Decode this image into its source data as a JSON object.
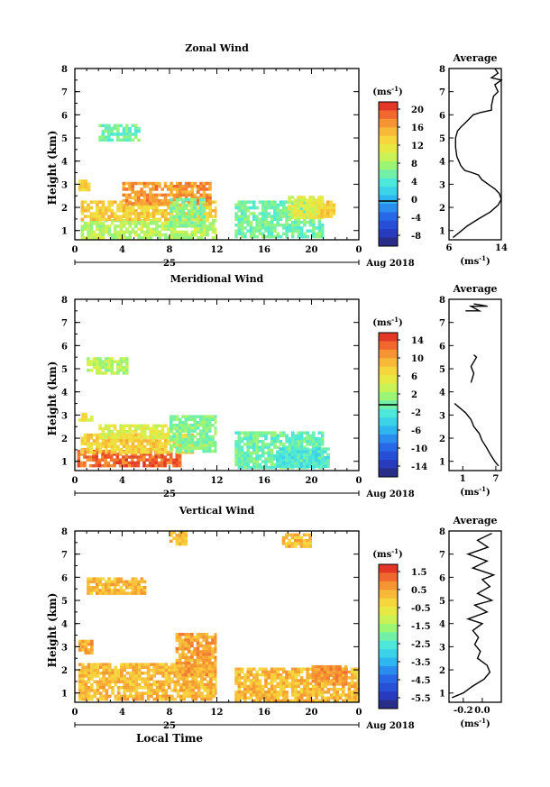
{
  "figure": {
    "xlabel": "Local Time",
    "date_day": "25",
    "date_month": "Aug 2018",
    "height_label": "Height (km)",
    "unit": "(ms",
    "unit_exp": "-1",
    "unit_close": ")"
  },
  "chart_data": [
    {
      "type": "heatmap",
      "title": "Zonal Wind",
      "xlabel": "",
      "ylabel": "Height (km)",
      "x_ticks": [
        "0",
        "4",
        "8",
        "12",
        "16",
        "20",
        "0"
      ],
      "y_ticks": [
        "1",
        "2",
        "3",
        "4",
        "5",
        "6",
        "7",
        "8"
      ],
      "xlim": [
        0,
        24
      ],
      "ylim": [
        0.6,
        8
      ],
      "colorbar": {
        "ticks": [
          "20",
          "16",
          "12",
          "8",
          "4",
          "0",
          "-4",
          "-8"
        ],
        "range": [
          -10,
          22
        ],
        "marker": 0
      },
      "data_gap_hours": [
        12,
        13.5
      ],
      "blobs": [
        {
          "x": [
            0.5,
            12
          ],
          "y": [
            0.7,
            1.5
          ],
          "value": 9
        },
        {
          "x": [
            0.5,
            12
          ],
          "y": [
            1.5,
            2.3
          ],
          "value": 14
        },
        {
          "x": [
            4,
            11.5
          ],
          "y": [
            2.2,
            3.1
          ],
          "value": 17
        },
        {
          "x": [
            8,
            11
          ],
          "y": [
            1.2,
            2.4
          ],
          "value": 7
        },
        {
          "x": [
            13.5,
            21
          ],
          "y": [
            0.7,
            2.3
          ],
          "value": 6
        },
        {
          "x": [
            18,
            21
          ],
          "y": [
            1.6,
            2.5
          ],
          "value": 11
        },
        {
          "x": [
            20.5,
            22
          ],
          "y": [
            1.6,
            2.3
          ],
          "value": 14
        },
        {
          "x": [
            2,
            5.5
          ],
          "y": [
            4.9,
            5.6
          ],
          "value": 6
        },
        {
          "x": [
            0.3,
            1.2
          ],
          "y": [
            2.8,
            3.2
          ],
          "value": 13
        }
      ],
      "profile": {
        "title": "Average",
        "xlabel": "(ms",
        "xlabel_exp": "-1",
        "xlabel_close": ")",
        "x_ticks": [
          "6",
          "14"
        ],
        "xlim": [
          6,
          14
        ],
        "points": [
          [
            6.6,
            0.7
          ],
          [
            7.5,
            0.9
          ],
          [
            8.8,
            1.2
          ],
          [
            10.5,
            1.5
          ],
          [
            12.3,
            1.8
          ],
          [
            13.5,
            2.1
          ],
          [
            14.0,
            2.35
          ],
          [
            13.7,
            2.6
          ],
          [
            13.0,
            2.8
          ],
          [
            12.0,
            3.0
          ],
          [
            11.0,
            3.2
          ],
          [
            10.5,
            3.4
          ],
          [
            9.5,
            3.5
          ],
          [
            8.4,
            3.6
          ],
          [
            7.8,
            3.8
          ],
          [
            7.2,
            4.2
          ],
          [
            7.0,
            4.6
          ],
          [
            7.0,
            5.0
          ],
          [
            7.3,
            5.3
          ],
          [
            7.6,
            5.4
          ],
          [
            7.9,
            5.5
          ],
          [
            8.3,
            5.6
          ],
          [
            9.0,
            5.8
          ],
          [
            9.7,
            6.0
          ],
          [
            10.8,
            6.1
          ],
          [
            12.5,
            6.2
          ],
          [
            12.5,
            6.4
          ],
          [
            12.8,
            6.8
          ],
          [
            13.5,
            7.0
          ],
          [
            13.0,
            7.3
          ],
          [
            14.0,
            7.5
          ],
          [
            12.5,
            7.6
          ],
          [
            13.5,
            7.8
          ],
          [
            13.0,
            8.0
          ]
        ]
      }
    },
    {
      "type": "heatmap",
      "title": "Meridional Wind",
      "xlabel": "",
      "ylabel": "Height (km)",
      "x_ticks": [
        "0",
        "4",
        "8",
        "12",
        "16",
        "20",
        "0"
      ],
      "y_ticks": [
        "1",
        "2",
        "3",
        "4",
        "5",
        "6",
        "7",
        "8"
      ],
      "xlim": [
        0,
        24
      ],
      "ylim": [
        0.6,
        8
      ],
      "colorbar": {
        "ticks": [
          "14",
          "10",
          "6",
          "2",
          "-2",
          "-6",
          "-10",
          "-14"
        ],
        "range": [
          -16,
          16
        ],
        "marker": 0
      },
      "data_gap_hours": [
        12,
        13.5
      ],
      "blobs": [
        {
          "x": [
            0.2,
            9
          ],
          "y": [
            0.8,
            1.5
          ],
          "value": 13
        },
        {
          "x": [
            0.5,
            10
          ],
          "y": [
            1.4,
            2.2
          ],
          "value": 8
        },
        {
          "x": [
            2,
            9
          ],
          "y": [
            2.0,
            2.6
          ],
          "value": 5
        },
        {
          "x": [
            8,
            12
          ],
          "y": [
            1.5,
            3.0
          ],
          "value": 1
        },
        {
          "x": [
            13.5,
            21
          ],
          "y": [
            0.8,
            2.3
          ],
          "value": 0
        },
        {
          "x": [
            17,
            21.5
          ],
          "y": [
            0.8,
            1.6
          ],
          "value": -2
        },
        {
          "x": [
            1,
            4.5
          ],
          "y": [
            4.8,
            5.5
          ],
          "value": 3
        },
        {
          "x": [
            0.3,
            1.5
          ],
          "y": [
            2.8,
            3.1
          ],
          "value": 6
        }
      ],
      "profile": {
        "title": "Average",
        "xlabel": "(ms",
        "xlabel_exp": "-1",
        "xlabel_close": ")",
        "x_ticks": [
          "1",
          "7"
        ],
        "xlim": [
          -1.5,
          8
        ],
        "points": [
          [
            7.5,
            0.8
          ],
          [
            6.8,
            1.0
          ],
          [
            6.0,
            1.3
          ],
          [
            5.3,
            1.6
          ],
          [
            4.5,
            1.9
          ],
          [
            4.0,
            2.2
          ],
          [
            3.0,
            2.5
          ],
          [
            2.5,
            2.8
          ],
          [
            1.5,
            3.1
          ],
          [
            0.5,
            3.3
          ],
          [
            -0.5,
            3.5
          ]
        ],
        "points2": [
          [
            2.5,
            4.4
          ],
          [
            3.0,
            4.8
          ],
          [
            2.5,
            5.1
          ],
          [
            3.5,
            5.5
          ],
          [
            3.0,
            5.6
          ]
        ],
        "points3": [
          [
            1.5,
            7.5
          ],
          [
            4.0,
            7.5
          ],
          [
            2.5,
            7.7
          ],
          [
            5.5,
            7.7
          ],
          [
            3.0,
            7.8
          ]
        ]
      }
    },
    {
      "type": "heatmap",
      "title": "Vertical Wind",
      "xlabel": "Local Time",
      "ylabel": "Height (km)",
      "x_ticks": [
        "0",
        "4",
        "8",
        "12",
        "16",
        "20",
        "0"
      ],
      "y_ticks": [
        "1",
        "2",
        "3",
        "4",
        "5",
        "6",
        "7",
        "8"
      ],
      "xlim": [
        0,
        24
      ],
      "ylim": [
        0.6,
        8
      ],
      "colorbar": {
        "ticks": [
          "1.5",
          "0.5",
          "-0.5",
          "-1.5",
          "-2.5",
          "-3.5",
          "-4.5",
          "-5.5"
        ],
        "range": [
          -6,
          2
        ],
        "marker": null
      },
      "data_gap_hours": [
        12,
        13.5
      ],
      "blobs": [
        {
          "x": [
            0.3,
            12
          ],
          "y": [
            0.7,
            2.3
          ],
          "value": 0.3
        },
        {
          "x": [
            13.5,
            24
          ],
          "y": [
            0.7,
            2.1
          ],
          "value": 0.3
        },
        {
          "x": [
            8.5,
            12
          ],
          "y": [
            1.8,
            3.6
          ],
          "value": 0.6
        },
        {
          "x": [
            0.3,
            1.5
          ],
          "y": [
            2.7,
            3.3
          ],
          "value": 0.6
        },
        {
          "x": [
            20,
            23
          ],
          "y": [
            1.4,
            2.2
          ],
          "value": 0.8
        },
        {
          "x": [
            1,
            6
          ],
          "y": [
            5.3,
            6.0
          ],
          "value": 0.3
        },
        {
          "x": [
            8,
            9.5
          ],
          "y": [
            7.5,
            8.0
          ],
          "value": 0.3
        },
        {
          "x": [
            17.5,
            20
          ],
          "y": [
            7.4,
            7.9
          ],
          "value": 0.3
        }
      ],
      "profile": {
        "title": "Average",
        "xlabel": "(ms",
        "xlabel_exp": "-1",
        "xlabel_close": ")",
        "x_ticks": [
          "-0.2",
          "0.0"
        ],
        "xlim": [
          -0.35,
          0.2
        ],
        "points": [
          [
            -0.32,
            0.8
          ],
          [
            -0.2,
            1.0
          ],
          [
            -0.1,
            1.3
          ],
          [
            0.02,
            1.6
          ],
          [
            0.08,
            1.9
          ],
          [
            0.05,
            2.2
          ],
          [
            -0.05,
            2.5
          ],
          [
            -0.02,
            2.8
          ],
          [
            -0.08,
            3.1
          ],
          [
            -0.04,
            3.4
          ],
          [
            -0.1,
            3.7
          ],
          [
            0.0,
            4.0
          ],
          [
            -0.15,
            4.2
          ],
          [
            0.05,
            4.5
          ],
          [
            -0.08,
            4.8
          ],
          [
            0.1,
            5.0
          ],
          [
            -0.05,
            5.3
          ],
          [
            0.08,
            5.6
          ],
          [
            0.0,
            5.9
          ],
          [
            0.12,
            6.1
          ],
          [
            -0.1,
            6.4
          ],
          [
            0.05,
            6.7
          ],
          [
            -0.15,
            7.0
          ],
          [
            0.06,
            7.3
          ],
          [
            -0.05,
            7.6
          ],
          [
            0.1,
            7.9
          ]
        ]
      }
    }
  ]
}
